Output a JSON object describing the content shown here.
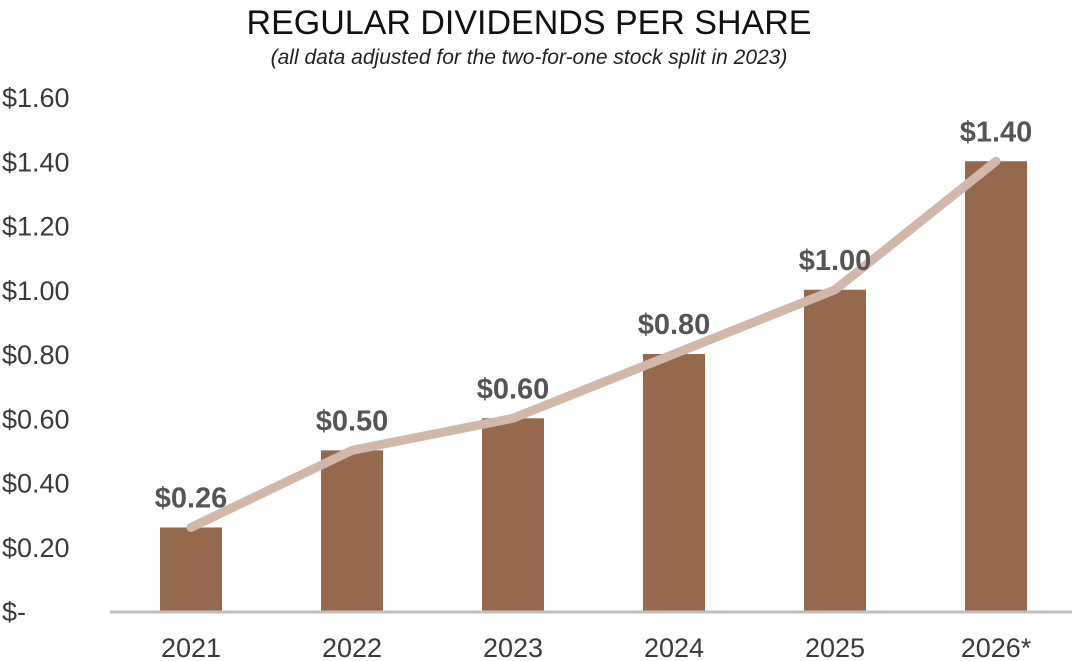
{
  "colors": {
    "bar": "#97694C",
    "trend": "#D2B8A8",
    "axis": "#BFBFBF"
  },
  "chart_data": {
    "type": "bar",
    "title": "REGULAR DIVIDENDS PER SHARE",
    "subtitle": "(all data adjusted for the two-for-one stock split in 2023)",
    "xlabel": "",
    "ylabel": "",
    "categories": [
      "2021",
      "2022",
      "2023",
      "2024",
      "2025",
      "2026*"
    ],
    "series": [
      {
        "name": "Regular dividends per share",
        "values": [
          0.26,
          0.5,
          0.6,
          0.8,
          1.0,
          1.4
        ],
        "data_labels": [
          "$0.26",
          "$0.50",
          "$0.60",
          "$0.80",
          "$1.00",
          "$1.40"
        ]
      }
    ],
    "trend_line": true,
    "ylim": [
      0,
      1.6
    ],
    "yticks": [
      0,
      0.2,
      0.4,
      0.6,
      0.8,
      1.0,
      1.2,
      1.4,
      1.6
    ],
    "ytick_labels": [
      "$-",
      "$0.20",
      "$0.40",
      "$0.60",
      "$0.80",
      "$1.00",
      "$1.20",
      "$1.40",
      "$1.60"
    ],
    "grid": false,
    "legend": "none"
  }
}
